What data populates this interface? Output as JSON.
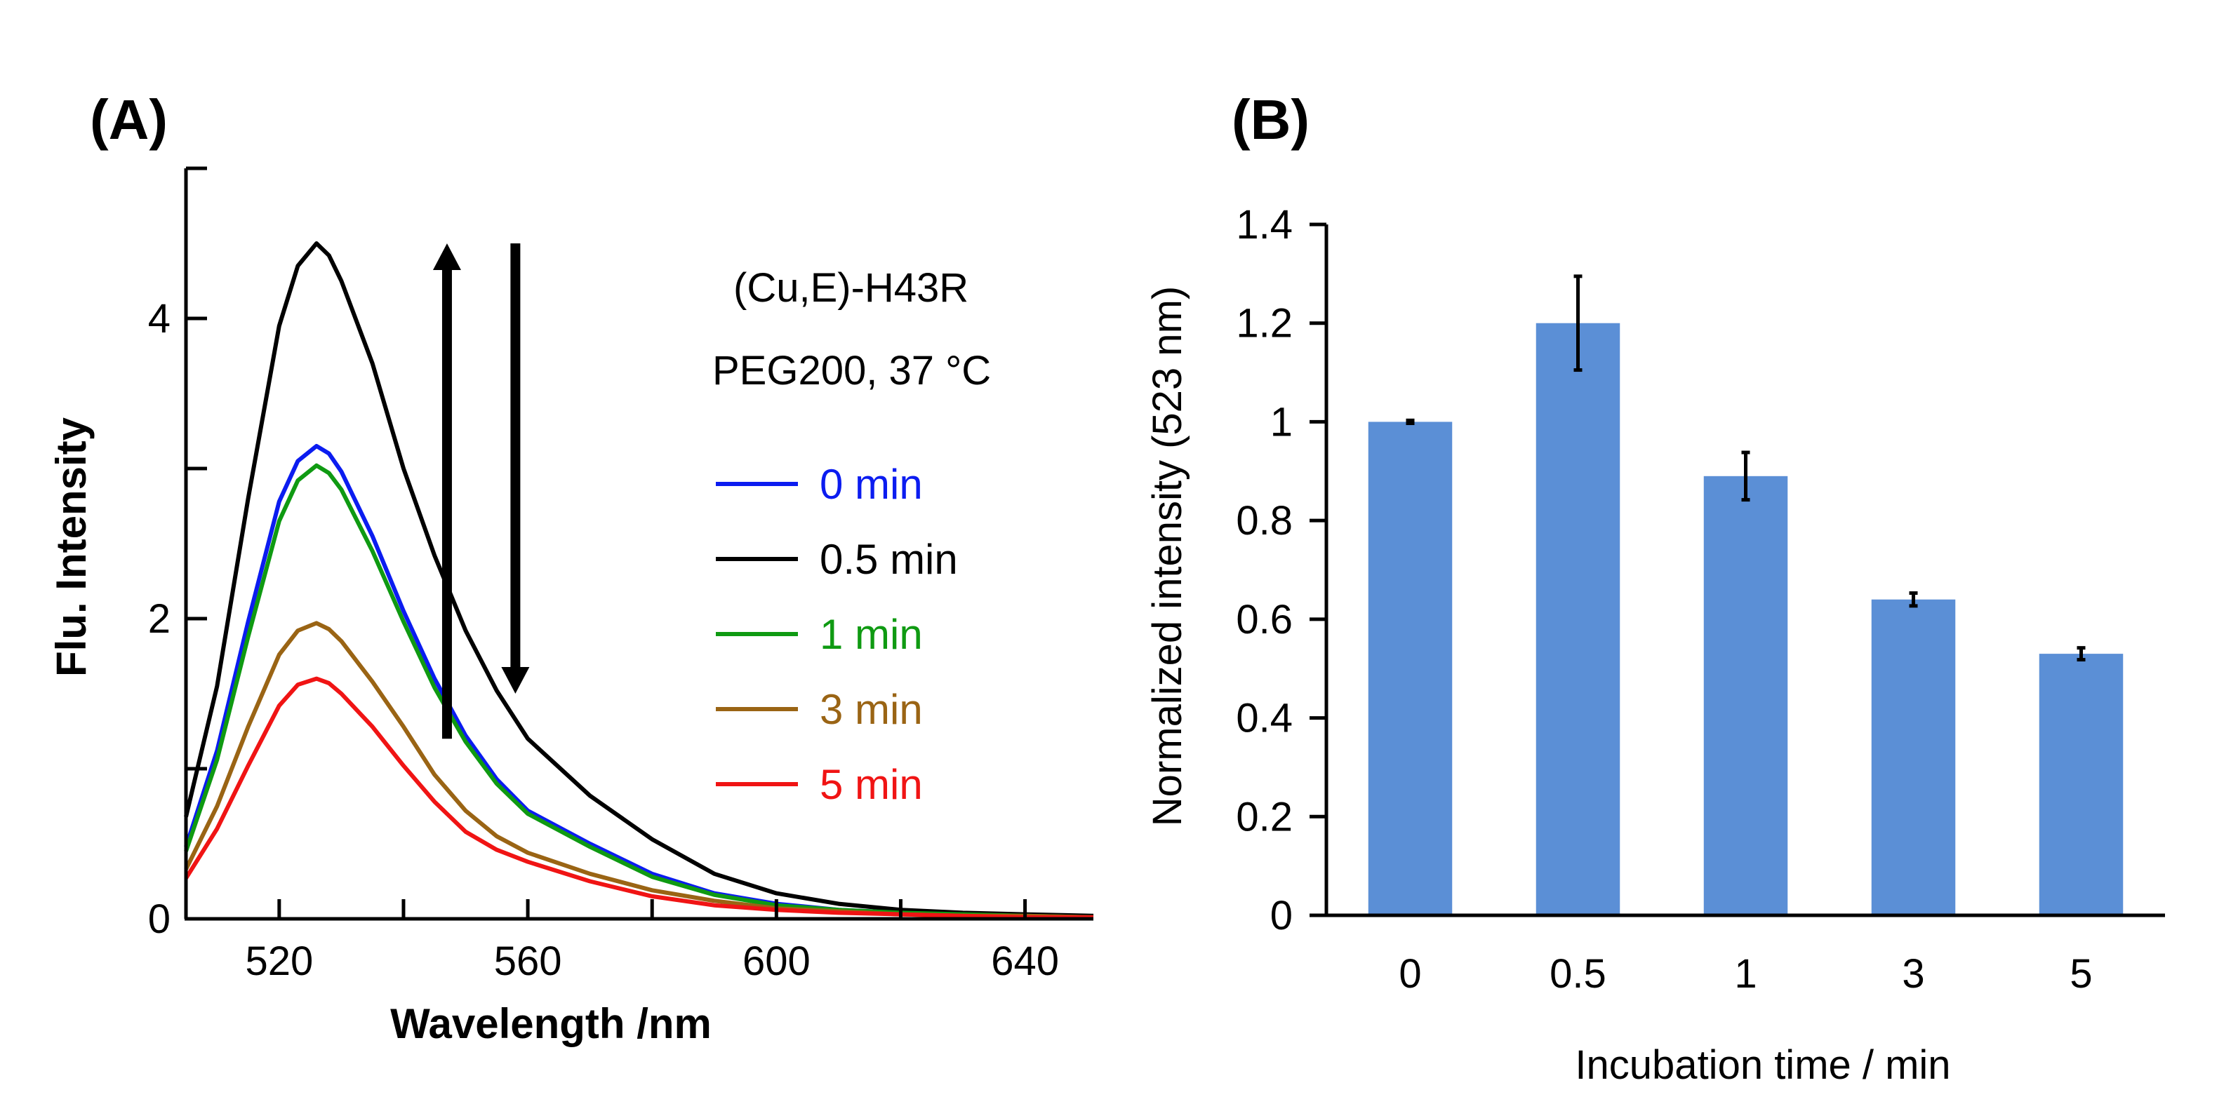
{
  "chart_data": [
    {
      "panel_label": "(A)",
      "type": "line",
      "xlabel": "Wavelength /nm",
      "ylabel": "Flu. Intensity",
      "xlim": [
        505,
        651
      ],
      "ylim": [
        0,
        5
      ],
      "xticks_labeled": [
        520,
        560,
        600,
        640
      ],
      "xticks_minor": [
        540,
        580,
        620
      ],
      "yticks_labeled": [
        0,
        2,
        4
      ],
      "yticks_minor": [
        1,
        3,
        5
      ],
      "annotations": [
        "(Cu,E)-H43R",
        "PEG200, 37 °C"
      ],
      "arrows": [
        {
          "direction": "up",
          "x": 547,
          "y_from": 1.2,
          "y_to": 4.5
        },
        {
          "direction": "down",
          "x": 558,
          "y_from": 4.5,
          "y_to": 1.5
        }
      ],
      "series": [
        {
          "name": "0 min",
          "color": "#0b1cf0",
          "x": [
            505,
            510,
            515,
            520,
            523,
            526,
            528,
            530,
            535,
            540,
            545,
            550,
            555,
            560,
            570,
            580,
            590,
            600,
            610,
            620,
            630,
            640,
            651
          ],
          "y": [
            0.48,
            1.12,
            1.98,
            2.78,
            3.05,
            3.15,
            3.1,
            2.98,
            2.55,
            2.05,
            1.6,
            1.22,
            0.93,
            0.72,
            0.5,
            0.3,
            0.17,
            0.1,
            0.06,
            0.04,
            0.03,
            0.02,
            0.01
          ]
        },
        {
          "name": "0.5 min",
          "color": "#000000",
          "x": [
            505,
            510,
            515,
            520,
            523,
            526,
            528,
            530,
            535,
            540,
            545,
            550,
            555,
            560,
            570,
            580,
            590,
            600,
            610,
            620,
            630,
            640,
            651
          ],
          "y": [
            0.68,
            1.55,
            2.8,
            3.95,
            4.35,
            4.5,
            4.42,
            4.25,
            3.7,
            3.0,
            2.42,
            1.92,
            1.52,
            1.2,
            0.82,
            0.53,
            0.3,
            0.17,
            0.1,
            0.06,
            0.04,
            0.03,
            0.02
          ]
        },
        {
          "name": "1 min",
          "color": "#0f9a12",
          "x": [
            505,
            510,
            515,
            520,
            523,
            526,
            528,
            530,
            535,
            540,
            545,
            550,
            555,
            560,
            570,
            580,
            590,
            600,
            610,
            620,
            630,
            640,
            651
          ],
          "y": [
            0.45,
            1.06,
            1.88,
            2.65,
            2.92,
            3.02,
            2.97,
            2.86,
            2.45,
            1.98,
            1.54,
            1.18,
            0.9,
            0.7,
            0.48,
            0.28,
            0.16,
            0.09,
            0.06,
            0.04,
            0.03,
            0.02,
            0.01
          ]
        },
        {
          "name": "3 min",
          "color": "#9a6414",
          "x": [
            505,
            510,
            515,
            520,
            523,
            526,
            528,
            530,
            535,
            540,
            545,
            550,
            555,
            560,
            570,
            580,
            590,
            600,
            610,
            620,
            630,
            640,
            651
          ],
          "y": [
            0.33,
            0.75,
            1.28,
            1.76,
            1.92,
            1.97,
            1.93,
            1.85,
            1.58,
            1.28,
            0.96,
            0.72,
            0.55,
            0.44,
            0.3,
            0.19,
            0.12,
            0.07,
            0.05,
            0.03,
            0.02,
            0.02,
            0.01
          ]
        },
        {
          "name": "5 min",
          "color": "#f01414",
          "x": [
            505,
            510,
            515,
            520,
            523,
            526,
            528,
            530,
            535,
            540,
            545,
            550,
            555,
            560,
            570,
            580,
            590,
            600,
            610,
            620,
            630,
            640,
            651
          ],
          "y": [
            0.27,
            0.6,
            1.02,
            1.42,
            1.56,
            1.6,
            1.57,
            1.5,
            1.28,
            1.02,
            0.78,
            0.58,
            0.46,
            0.38,
            0.25,
            0.15,
            0.09,
            0.06,
            0.04,
            0.03,
            0.02,
            0.01,
            0.01
          ]
        }
      ]
    },
    {
      "panel_label": "(B)",
      "type": "bar",
      "xlabel": "Incubation time / min",
      "ylabel": "Normalized intensity (523 nm)",
      "ylim": [
        0,
        1.4
      ],
      "yticks": [
        0,
        0.2,
        0.4,
        0.6,
        0.8,
        1,
        1.2,
        1.4
      ],
      "ytick_labels": [
        "0",
        "0.2",
        "0.4",
        "0.6",
        "0.8",
        "1",
        "1.2",
        "1.4"
      ],
      "categories": [
        "0",
        "0.5",
        "1",
        "3",
        "5"
      ],
      "values": [
        1.0,
        1.2,
        0.89,
        0.64,
        0.53
      ],
      "errors": [
        0.003,
        0.095,
        0.048,
        0.013,
        0.012
      ],
      "bar_color": "#5b8fd6"
    }
  ]
}
